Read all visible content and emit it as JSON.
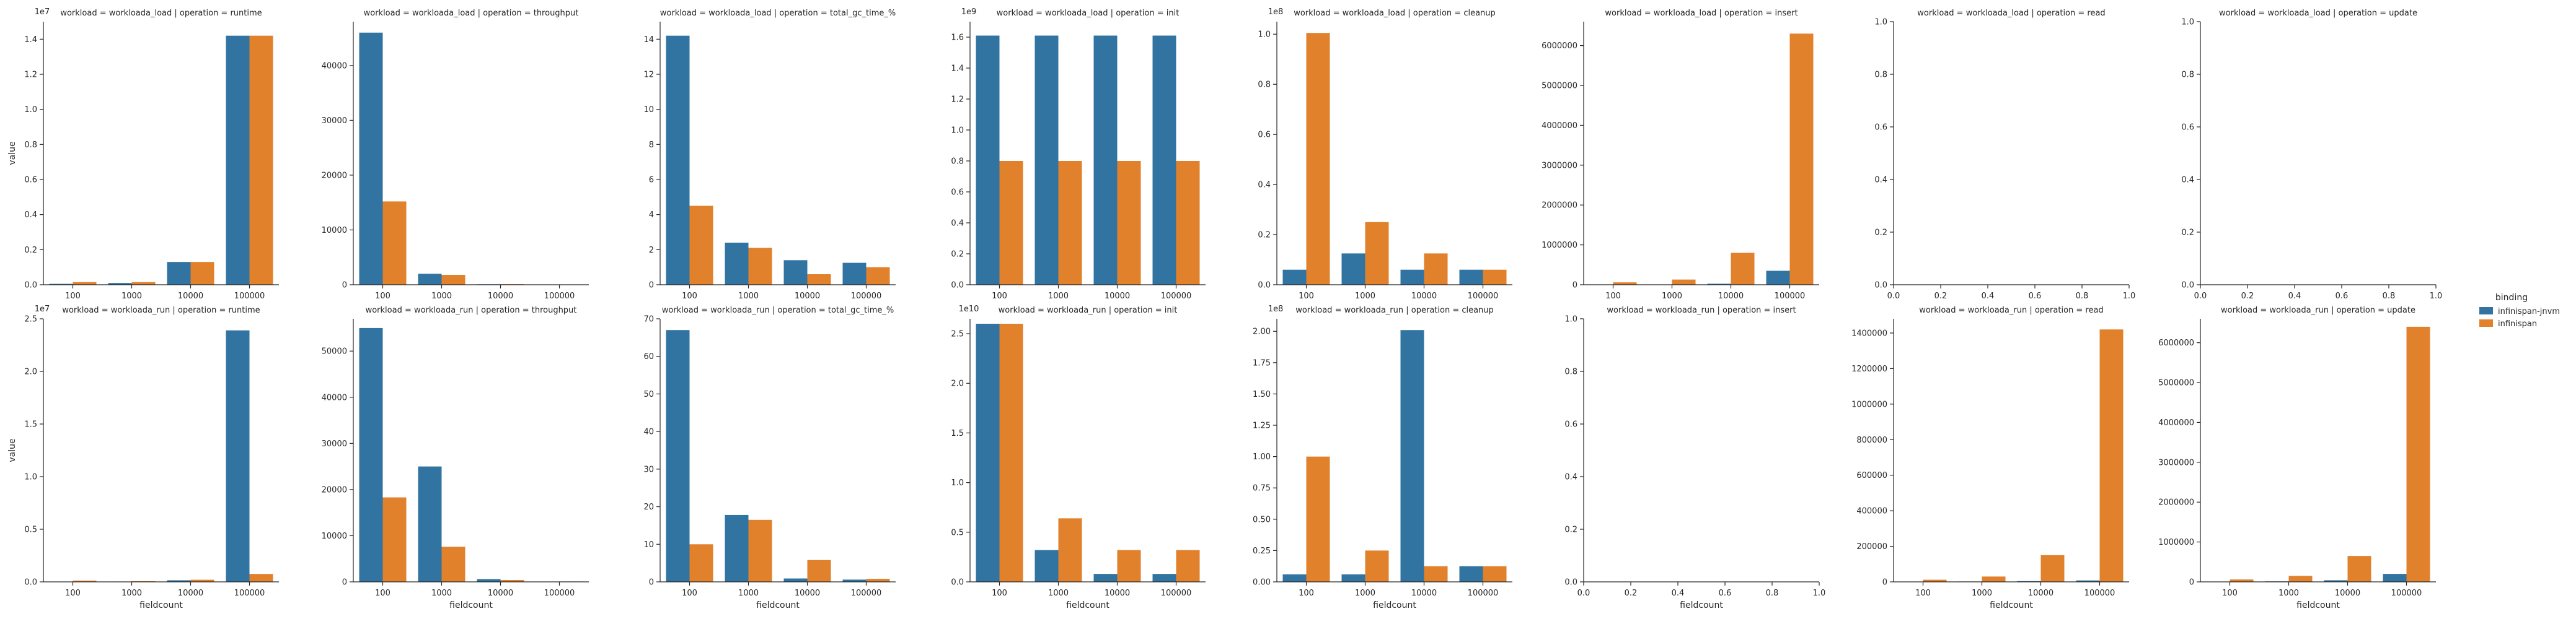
{
  "chart_data": {
    "type": "bar",
    "categories": [
      "100",
      "1000",
      "10000",
      "100000"
    ],
    "xlabel": "fieldcount",
    "ylabel": "value",
    "legend": {
      "title": "binding",
      "placement": "right",
      "entries": [
        {
          "name": "infinispan-jnvm",
          "color": "#3274a1"
        },
        {
          "name": "infinispan",
          "color": "#e1812c"
        }
      ]
    },
    "panels": [
      {
        "title": "workload = workloada_load | operation = runtime",
        "offset_label": "1e7",
        "ylim": [
          0,
          15000000
        ],
        "yticks": [
          0,
          2000000,
          4000000,
          6000000,
          8000000,
          10000000,
          12000000,
          14000000
        ],
        "ytick_labels": [
          "0.0",
          "0.2",
          "0.4",
          "0.6",
          "0.8",
          "1.0",
          "1.2",
          "1.4"
        ],
        "series": [
          {
            "name": "infinispan-jnvm",
            "values": [
              50000,
              100000,
              1300000,
              14200000
            ]
          },
          {
            "name": "infinispan",
            "values": [
              150000,
              150000,
              1300000,
              14200000
            ]
          }
        ]
      },
      {
        "title": "workload = workloada_load | operation = throughput",
        "offset_label": "",
        "ylim": [
          0,
          48000
        ],
        "yticks": [
          0,
          10000,
          20000,
          30000,
          40000
        ],
        "ytick_labels": [
          "0",
          "10000",
          "20000",
          "30000",
          "40000"
        ],
        "series": [
          {
            "name": "infinispan-jnvm",
            "values": [
              46000,
              2000,
              80,
              8
            ]
          },
          {
            "name": "infinispan",
            "values": [
              15200,
              1800,
              100,
              10
            ]
          }
        ]
      },
      {
        "title": "workload = workloada_load | operation = total_gc_time_%",
        "offset_label": "",
        "ylim": [
          0,
          15
        ],
        "yticks": [
          0,
          2,
          4,
          6,
          8,
          10,
          12,
          14
        ],
        "ytick_labels": [
          "0",
          "2",
          "4",
          "6",
          "8",
          "10",
          "12",
          "14"
        ],
        "series": [
          {
            "name": "infinispan-jnvm",
            "values": [
              14.2,
              2.4,
              1.4,
              1.25
            ]
          },
          {
            "name": "infinispan",
            "values": [
              4.5,
              2.1,
              0.6,
              1.0
            ]
          }
        ]
      },
      {
        "title": "workload = workloada_load | operation = init",
        "offset_label": "1e9",
        "ylim": [
          0,
          1700000000
        ],
        "yticks": [
          0,
          200000000,
          400000000,
          600000000,
          800000000,
          1000000000,
          1200000000,
          1400000000,
          1600000000
        ],
        "ytick_labels": [
          "0.0",
          "0.2",
          "0.4",
          "0.6",
          "0.8",
          "1.0",
          "1.2",
          "1.4",
          "1.6"
        ],
        "series": [
          {
            "name": "infinispan-jnvm",
            "values": [
              1610000000,
              1610000000,
              1610000000,
              1610000000
            ]
          },
          {
            "name": "infinispan",
            "values": [
              800000000,
              800000000,
              800000000,
              800000000
            ]
          }
        ]
      },
      {
        "title": "workload = workloada_load | operation = cleanup",
        "offset_label": "1e8",
        "ylim": [
          0,
          105000000
        ],
        "yticks": [
          0,
          20000000,
          40000000,
          60000000,
          80000000,
          100000000
        ],
        "ytick_labels": [
          "0.0",
          "0.2",
          "0.4",
          "0.6",
          "0.8",
          "1.0"
        ],
        "series": [
          {
            "name": "infinispan-jnvm",
            "values": [
              6000000,
              12500000,
              6000000,
              6000000
            ]
          },
          {
            "name": "infinispan",
            "values": [
              100500000,
              25000000,
              12500000,
              6000000
            ]
          }
        ]
      },
      {
        "title": "workload = workloada_load | operation = insert",
        "offset_label": "",
        "ylim": [
          0,
          6600000
        ],
        "yticks": [
          0,
          1000000,
          2000000,
          3000000,
          4000000,
          5000000,
          6000000
        ],
        "ytick_labels": [
          "0",
          "1000000",
          "2000000",
          "3000000",
          "4000000",
          "5000000",
          "6000000"
        ],
        "series": [
          {
            "name": "infinispan-jnvm",
            "values": [
              3000,
              6000,
              25000,
              350000
            ]
          },
          {
            "name": "infinispan",
            "values": [
              60000,
              130000,
              800000,
              6300000
            ]
          }
        ]
      },
      {
        "title": "workload = workloada_load | operation = read",
        "offset_label": "",
        "ylim": [
          0,
          1
        ],
        "yticks": [
          0,
          0.2,
          0.4,
          0.6,
          0.8,
          1.0
        ],
        "ytick_labels": [
          "0.0",
          "0.2",
          "0.4",
          "0.6",
          "0.8",
          "1.0"
        ],
        "xticks": [
          0,
          0.2,
          0.4,
          0.6,
          0.8,
          1.0
        ],
        "xtick_labels": [
          "0.0",
          "0.2",
          "0.4",
          "0.6",
          "0.8",
          "1.0"
        ],
        "series": []
      },
      {
        "title": "workload = workloada_load | operation = update",
        "offset_label": "",
        "ylim": [
          0,
          1
        ],
        "yticks": [
          0,
          0.2,
          0.4,
          0.6,
          0.8,
          1.0
        ],
        "ytick_labels": [
          "0.0",
          "0.2",
          "0.4",
          "0.6",
          "0.8",
          "1.0"
        ],
        "xticks": [
          0,
          0.2,
          0.4,
          0.6,
          0.8,
          1.0
        ],
        "xtick_labels": [
          "0.0",
          "0.2",
          "0.4",
          "0.6",
          "0.8",
          "1.0"
        ],
        "series": []
      },
      {
        "title": "workload = workloada_run | operation = runtime",
        "offset_label": "1e7",
        "ylim": [
          0,
          25000000
        ],
        "yticks": [
          0,
          5000000,
          10000000,
          15000000,
          20000000,
          25000000
        ],
        "ytick_labels": [
          "0.0",
          "0.5",
          "1.0",
          "1.5",
          "2.0",
          "2.5"
        ],
        "series": [
          {
            "name": "infinispan-jnvm",
            "values": [
              20000,
              30000,
              150000,
              23900000
            ]
          },
          {
            "name": "infinispan",
            "values": [
              120000,
              60000,
              200000,
              750000
            ]
          }
        ]
      },
      {
        "title": "workload = workloada_run | operation = throughput",
        "offset_label": "",
        "ylim": [
          0,
          57000
        ],
        "yticks": [
          0,
          10000,
          20000,
          30000,
          40000,
          50000
        ],
        "ytick_labels": [
          "0",
          "10000",
          "20000",
          "30000",
          "40000",
          "50000"
        ],
        "series": [
          {
            "name": "infinispan-jnvm",
            "values": [
              55000,
              25000,
              600,
              60
            ]
          },
          {
            "name": "infinispan",
            "values": [
              18300,
              7600,
              400,
              80
            ]
          }
        ]
      },
      {
        "title": "workload = workloada_run | operation = total_gc_time_%",
        "offset_label": "",
        "ylim": [
          0,
          70
        ],
        "yticks": [
          0,
          10,
          20,
          30,
          40,
          50,
          60,
          70
        ],
        "ytick_labels": [
          "0",
          "10",
          "20",
          "30",
          "40",
          "50",
          "60",
          "70"
        ],
        "series": [
          {
            "name": "infinispan-jnvm",
            "values": [
              67,
              17.8,
              0.9,
              0.6
            ]
          },
          {
            "name": "infinispan",
            "values": [
              10,
              16.5,
              5.8,
              0.8
            ]
          }
        ]
      },
      {
        "title": "workload = workloada_run | operation = init",
        "offset_label": "1e10",
        "ylim": [
          0,
          26500000000
        ],
        "yticks": [
          0,
          5000000000,
          10000000000,
          15000000000,
          20000000000,
          25000000000
        ],
        "ytick_labels": [
          "0.0",
          "0.5",
          "1.0",
          "1.5",
          "2.0",
          "2.5"
        ],
        "series": [
          {
            "name": "infinispan-jnvm",
            "values": [
              26000000000,
              3200000000,
              800000000,
              800000000
            ]
          },
          {
            "name": "infinispan",
            "values": [
              26000000000,
              6400000000,
              3200000000,
              3200000000
            ]
          }
        ]
      },
      {
        "title": "workload = workloada_run | operation = cleanup",
        "offset_label": "1e8",
        "ylim": [
          0,
          210000000
        ],
        "yticks": [
          0,
          25000000,
          50000000,
          75000000,
          100000000,
          125000000,
          150000000,
          175000000,
          200000000
        ],
        "ytick_labels": [
          "0.00",
          "0.25",
          "0.50",
          "0.75",
          "1.00",
          "1.25",
          "1.50",
          "1.75",
          "2.00"
        ],
        "series": [
          {
            "name": "infinispan-jnvm",
            "values": [
              6000000,
              6000000,
              201000000,
              12500000
            ]
          },
          {
            "name": "infinispan",
            "values": [
              100000000,
              25000000,
              12500000,
              12500000
            ]
          }
        ]
      },
      {
        "title": "workload = workloada_run | operation = insert",
        "offset_label": "",
        "ylim": [
          0,
          1
        ],
        "yticks": [
          0,
          0.2,
          0.4,
          0.6,
          0.8,
          1.0
        ],
        "ytick_labels": [
          "0.0",
          "0.2",
          "0.4",
          "0.6",
          "0.8",
          "1.0"
        ],
        "xticks": [
          0,
          0.2,
          0.4,
          0.6,
          0.8,
          1.0
        ],
        "xtick_labels": [
          "0.0",
          "0.2",
          "0.4",
          "0.6",
          "0.8",
          "1.0"
        ],
        "series": []
      },
      {
        "title": "workload = workloada_run | operation = read",
        "offset_label": "",
        "ylim": [
          0,
          1480000
        ],
        "yticks": [
          0,
          200000,
          400000,
          600000,
          800000,
          1000000,
          1200000,
          1400000
        ],
        "ytick_labels": [
          "0",
          "200000",
          "400000",
          "600000",
          "800000",
          "1000000",
          "1200000",
          "1400000"
        ],
        "series": [
          {
            "name": "infinispan-jnvm",
            "values": [
              1000,
              2000,
              4000,
              8000
            ]
          },
          {
            "name": "infinispan",
            "values": [
              12000,
              30000,
              150000,
              1420000
            ]
          }
        ]
      },
      {
        "title": "workload = workloada_run | operation = update",
        "offset_label": "",
        "ylim": [
          0,
          6600000
        ],
        "yticks": [
          0,
          1000000,
          2000000,
          3000000,
          4000000,
          5000000,
          6000000
        ],
        "ytick_labels": [
          "0",
          "1000000",
          "2000000",
          "3000000",
          "4000000",
          "5000000",
          "6000000"
        ],
        "series": [
          {
            "name": "infinispan-jnvm",
            "values": [
              5000,
              12000,
              40000,
              200000
            ]
          },
          {
            "name": "infinispan",
            "values": [
              60000,
              150000,
              650000,
              6400000
            ]
          }
        ]
      }
    ]
  }
}
